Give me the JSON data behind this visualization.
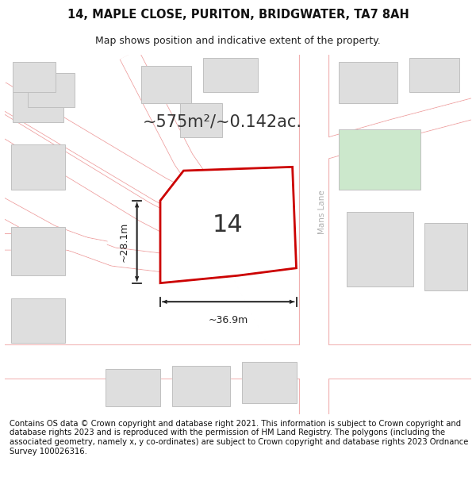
{
  "title": "14, MAPLE CLOSE, PURITON, BRIDGWATER, TA7 8AH",
  "subtitle": "Map shows position and indicative extent of the property.",
  "footer": "Contains OS data © Crown copyright and database right 2021. This information is subject to Crown copyright and database rights 2023 and is reproduced with the permission of HM Land Registry. The polygons (including the associated geometry, namely x, y co-ordinates) are subject to Crown copyright and database rights 2023 Ordnance Survey 100026316.",
  "background_color": "#ffffff",
  "map_bg": "#f2f2f2",
  "area_label": "~575m²/~0.142ac.",
  "number_label": "14",
  "dim_width": "~36.9m",
  "dim_height": "~28.1m",
  "street_label": "Mans Lane",
  "title_fontsize": 10.5,
  "subtitle_fontsize": 9,
  "footer_fontsize": 7.2,
  "road_color": "#f0a8a8",
  "road_fill": "#ffffff",
  "bld_fill": "#dedede",
  "bld_edge": "#c0c0c0",
  "green_fill": "#cce8cc",
  "plot_color": "#cc0000",
  "plot_fill": "#ffffff",
  "dim_color": "#222222",
  "text_color": "#333333",
  "street_color": "#b0b0b0"
}
